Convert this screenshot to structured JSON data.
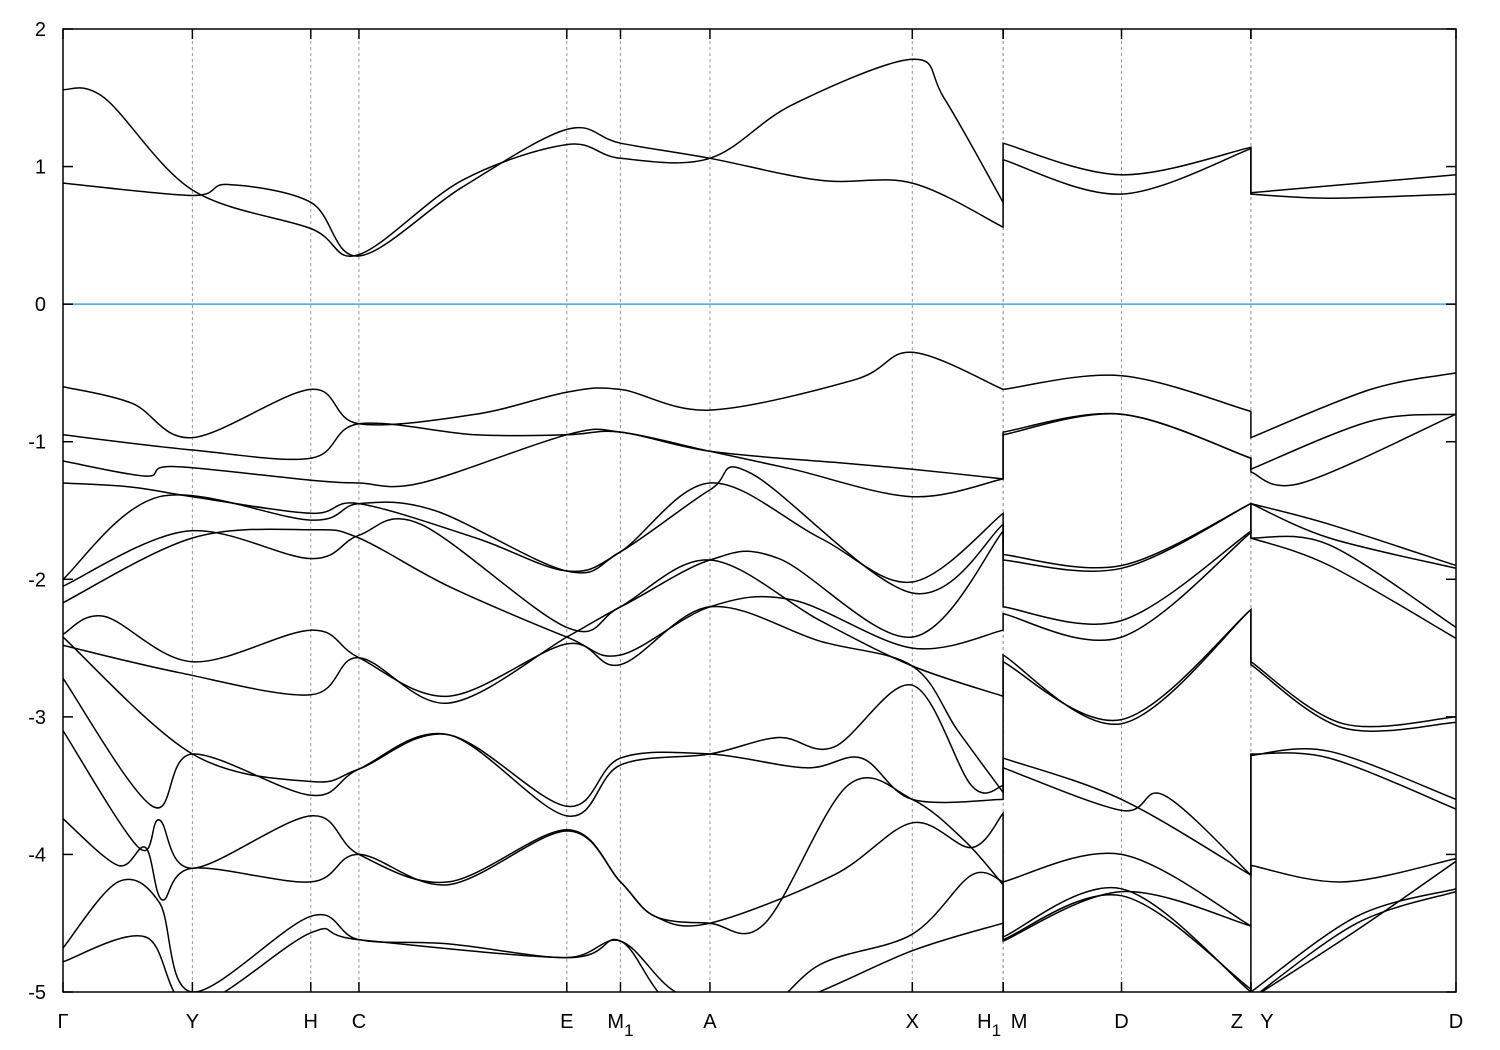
{
  "chart_data": {
    "type": "line",
    "title": "",
    "xlabel": "",
    "ylabel": "",
    "ylim": [
      -5,
      2
    ],
    "xlim": [
      0,
      10.12
    ],
    "yticks": [
      -5,
      -4,
      -3,
      -2,
      -1,
      0,
      1,
      2
    ],
    "grid": "vertical dashed lines at high-symmetry points",
    "fermi_level": {
      "value": 0,
      "color": "#3ea6da"
    },
    "band_color": "#000000",
    "kpoints": [
      {
        "label": "Γ",
        "sub": "",
        "k": 0
      },
      {
        "label": "Y",
        "sub": "",
        "k": 0.94
      },
      {
        "label": "H",
        "sub": "",
        "k": 1.8
      },
      {
        "label": "C",
        "sub": "",
        "k": 2.15
      },
      {
        "label": "E",
        "sub": "",
        "k": 3.66
      },
      {
        "label": "M",
        "sub": "1",
        "k": 4.05
      },
      {
        "label": "A",
        "sub": "",
        "k": 4.7
      },
      {
        "label": "X",
        "sub": "",
        "k": 6.17
      },
      {
        "label": "H",
        "sub": "1",
        "k": 6.83,
        "dx": -14
      },
      {
        "label": "M",
        "sub": "",
        "k": 6.83,
        "dx": 16
      },
      {
        "label": "D",
        "sub": "",
        "k": 7.69
      },
      {
        "label": "Z",
        "sub": "",
        "k": 8.63,
        "dx": -14
      },
      {
        "label": "Y",
        "sub": "",
        "k": 8.63,
        "dx": 16
      },
      {
        "label": "D",
        "sub": "",
        "k": 10.12
      }
    ],
    "bands": [
      [
        [
          0,
          1.56
        ],
        [
          0.3,
          1.5
        ],
        [
          0.94,
          0.83
        ],
        [
          1.8,
          0.55
        ],
        [
          2.15,
          0.36
        ],
        [
          2.9,
          0.9
        ],
        [
          3.66,
          1.16
        ],
        [
          4.05,
          1.06
        ],
        [
          4.7,
          1.06
        ],
        [
          5.3,
          1.45
        ],
        [
          6.17,
          1.78
        ],
        [
          6.4,
          1.5
        ],
        [
          6.83,
          0.74
        ],
        [
          6.83,
          1.17
        ],
        [
          7.69,
          0.94
        ],
        [
          8.63,
          1.14
        ],
        [
          8.63,
          0.81
        ],
        [
          10.12,
          0.94
        ]
      ],
      [
        [
          0,
          0.88
        ],
        [
          0.94,
          0.79
        ],
        [
          1.2,
          0.87
        ],
        [
          1.8,
          0.74
        ],
        [
          2.15,
          0.35
        ],
        [
          2.9,
          0.85
        ],
        [
          3.66,
          1.27
        ],
        [
          4.05,
          1.17
        ],
        [
          4.7,
          1.06
        ],
        [
          5.5,
          0.9
        ],
        [
          6.17,
          0.88
        ],
        [
          6.83,
          0.56
        ],
        [
          6.83,
          1.05
        ],
        [
          7.69,
          0.8
        ],
        [
          8.63,
          1.13
        ],
        [
          8.63,
          0.8
        ],
        [
          9.2,
          0.77
        ],
        [
          10.12,
          0.8
        ]
      ],
      [
        [
          0,
          -0.6
        ],
        [
          0.5,
          -0.72
        ],
        [
          0.94,
          -0.97
        ],
        [
          1.8,
          -0.62
        ],
        [
          2.15,
          -0.87
        ],
        [
          3.0,
          -0.8
        ],
        [
          3.66,
          -0.64
        ],
        [
          4.05,
          -0.62
        ],
        [
          4.7,
          -0.77
        ],
        [
          5.75,
          -0.55
        ],
        [
          6.17,
          -0.35
        ],
        [
          6.83,
          -0.62
        ],
        [
          6.83,
          -0.62
        ],
        [
          7.69,
          -0.52
        ],
        [
          8.63,
          -0.78
        ],
        [
          8.63,
          -0.97
        ],
        [
          9.5,
          -0.62
        ],
        [
          10.12,
          -0.5
        ]
      ],
      [
        [
          0,
          -0.95
        ],
        [
          0.94,
          -1.06
        ],
        [
          1.8,
          -1.12
        ],
        [
          2.15,
          -0.87
        ],
        [
          3.0,
          -0.95
        ],
        [
          3.66,
          -0.95
        ],
        [
          4.05,
          -0.93
        ],
        [
          4.7,
          -1.07
        ],
        [
          5.6,
          -1.15
        ],
        [
          6.17,
          -1.2
        ],
        [
          6.83,
          -1.27
        ],
        [
          6.83,
          -0.93
        ],
        [
          7.69,
          -0.8
        ],
        [
          8.63,
          -1.12
        ],
        [
          8.63,
          -1.2
        ],
        [
          9.5,
          -0.85
        ],
        [
          10.12,
          -0.8
        ]
      ],
      [
        [
          0,
          -1.14
        ],
        [
          0.6,
          -1.25
        ],
        [
          0.8,
          -1.18
        ],
        [
          1.8,
          -1.28
        ],
        [
          2.15,
          -1.3
        ],
        [
          2.6,
          -1.3
        ],
        [
          3.66,
          -0.95
        ],
        [
          4.05,
          -0.93
        ],
        [
          4.7,
          -1.07
        ],
        [
          5.3,
          -1.2
        ],
        [
          6.17,
          -1.4
        ],
        [
          6.83,
          -1.27
        ],
        [
          6.83,
          -0.95
        ],
        [
          7.69,
          -0.8
        ],
        [
          8.63,
          -1.12
        ],
        [
          8.63,
          -1.22
        ],
        [
          9.0,
          -1.3
        ],
        [
          10.12,
          -0.8
        ]
      ],
      [
        [
          0,
          -1.3
        ],
        [
          0.5,
          -1.33
        ],
        [
          0.94,
          -1.4
        ],
        [
          1.8,
          -1.52
        ],
        [
          2.15,
          -1.45
        ],
        [
          3.0,
          -1.7
        ],
        [
          3.66,
          -1.94
        ],
        [
          4.05,
          -1.8
        ],
        [
          4.7,
          -1.3
        ],
        [
          5.5,
          -1.7
        ],
        [
          6.17,
          -2.02
        ],
        [
          6.83,
          -1.52
        ],
        [
          6.83,
          -1.82
        ],
        [
          7.69,
          -1.9
        ],
        [
          8.63,
          -1.45
        ],
        [
          8.63,
          -1.45
        ],
        [
          9.2,
          -1.6
        ],
        [
          10.12,
          -1.9
        ]
      ],
      [
        [
          0,
          -2.0
        ],
        [
          0.7,
          -1.4
        ],
        [
          1.8,
          -1.57
        ],
        [
          2.15,
          -1.45
        ],
        [
          2.7,
          -1.5
        ],
        [
          3.66,
          -1.94
        ],
        [
          4.05,
          -1.8
        ],
        [
          4.7,
          -1.35
        ],
        [
          5.0,
          -1.23
        ],
        [
          6.17,
          -2.1
        ],
        [
          6.83,
          -1.6
        ],
        [
          6.83,
          -1.86
        ],
        [
          7.69,
          -1.92
        ],
        [
          8.63,
          -1.45
        ],
        [
          8.63,
          -1.7
        ],
        [
          9.2,
          -1.75
        ],
        [
          10.12,
          -2.35
        ]
      ],
      [
        [
          0,
          -2.05
        ],
        [
          0.9,
          -1.65
        ],
        [
          1.8,
          -1.85
        ],
        [
          2.15,
          -1.68
        ],
        [
          2.6,
          -1.6
        ],
        [
          3.66,
          -2.35
        ],
        [
          4.05,
          -2.2
        ],
        [
          4.7,
          -1.86
        ],
        [
          5.2,
          -1.85
        ],
        [
          6.17,
          -2.42
        ],
        [
          6.83,
          -1.65
        ],
        [
          6.83,
          -2.2
        ],
        [
          7.69,
          -2.3
        ],
        [
          8.63,
          -1.65
        ],
        [
          8.63,
          -1.7
        ],
        [
          9.2,
          -1.9
        ],
        [
          10.12,
          -2.43
        ]
      ],
      [
        [
          0,
          -2.17
        ],
        [
          0.94,
          -1.7
        ],
        [
          1.8,
          -1.64
        ],
        [
          2.15,
          -1.7
        ],
        [
          2.8,
          -2.05
        ],
        [
          3.66,
          -2.42
        ],
        [
          4.05,
          -2.55
        ],
        [
          4.7,
          -2.2
        ],
        [
          5.3,
          -2.15
        ],
        [
          6.17,
          -2.5
        ],
        [
          6.83,
          -2.37
        ],
        [
          6.83,
          -2.25
        ],
        [
          7.69,
          -2.42
        ],
        [
          8.63,
          -1.66
        ],
        [
          8.63,
          -1.45
        ],
        [
          9.2,
          -1.7
        ],
        [
          10.12,
          -1.92
        ]
      ],
      [
        [
          0,
          -2.4
        ],
        [
          0.3,
          -2.27
        ],
        [
          0.94,
          -2.6
        ],
        [
          1.8,
          -2.37
        ],
        [
          2.15,
          -2.57
        ],
        [
          2.8,
          -2.85
        ],
        [
          3.66,
          -2.47
        ],
        [
          4.05,
          -2.62
        ],
        [
          4.7,
          -2.2
        ],
        [
          5.5,
          -2.45
        ],
        [
          6.17,
          -2.63
        ],
        [
          6.5,
          -3.1
        ],
        [
          6.83,
          -3.55
        ],
        [
          6.83,
          -2.6
        ],
        [
          7.69,
          -3.02
        ],
        [
          8.63,
          -2.22
        ],
        [
          8.63,
          -2.6
        ],
        [
          9.3,
          -3.05
        ],
        [
          10.12,
          -3.0
        ]
      ],
      [
        [
          0,
          -2.48
        ],
        [
          0.85,
          -2.68
        ],
        [
          1.8,
          -2.84
        ],
        [
          2.15,
          -2.57
        ],
        [
          2.8,
          -2.9
        ],
        [
          3.66,
          -2.42
        ],
        [
          4.05,
          -2.2
        ],
        [
          4.7,
          -1.86
        ],
        [
          5.5,
          -2.3
        ],
        [
          6.17,
          -2.63
        ],
        [
          6.83,
          -2.85
        ],
        [
          6.83,
          -2.55
        ],
        [
          7.69,
          -3.05
        ],
        [
          8.63,
          -2.22
        ],
        [
          8.63,
          -2.62
        ],
        [
          9.3,
          -3.08
        ],
        [
          10.12,
          -3.04
        ]
      ],
      [
        [
          0,
          -2.42
        ],
        [
          0.94,
          -3.27
        ],
        [
          1.8,
          -3.47
        ],
        [
          2.15,
          -3.38
        ],
        [
          2.8,
          -3.13
        ],
        [
          3.66,
          -3.65
        ],
        [
          4.05,
          -3.3
        ],
        [
          4.7,
          -3.27
        ],
        [
          5.4,
          -3.37
        ],
        [
          5.8,
          -3.3
        ],
        [
          6.17,
          -3.6
        ],
        [
          6.83,
          -3.6
        ],
        [
          6.83,
          -3.3
        ],
        [
          7.69,
          -3.6
        ],
        [
          8.63,
          -4.15
        ],
        [
          8.63,
          -3.28
        ],
        [
          9.2,
          -3.25
        ],
        [
          10.12,
          -3.6
        ]
      ],
      [
        [
          0,
          -2.72
        ],
        [
          0.65,
          -3.65
        ],
        [
          0.94,
          -3.27
        ],
        [
          1.8,
          -3.57
        ],
        [
          2.15,
          -3.38
        ],
        [
          2.8,
          -3.13
        ],
        [
          3.66,
          -3.72
        ],
        [
          4.05,
          -3.35
        ],
        [
          4.7,
          -3.27
        ],
        [
          5.2,
          -3.15
        ],
        [
          5.6,
          -3.22
        ],
        [
          6.17,
          -2.77
        ],
        [
          6.6,
          -3.5
        ],
        [
          6.83,
          -3.5
        ],
        [
          6.83,
          -3.37
        ],
        [
          7.69,
          -3.68
        ],
        [
          8.0,
          -3.57
        ],
        [
          8.63,
          -4.15
        ],
        [
          8.63,
          -3.27
        ],
        [
          9.2,
          -3.3
        ],
        [
          10.12,
          -3.67
        ]
      ],
      [
        [
          0,
          -3.1
        ],
        [
          0.55,
          -3.95
        ],
        [
          0.7,
          -3.75
        ],
        [
          0.94,
          -4.1
        ],
        [
          1.8,
          -3.72
        ],
        [
          2.15,
          -4.0
        ],
        [
          2.8,
          -4.2
        ],
        [
          3.66,
          -3.82
        ],
        [
          4.05,
          -4.2
        ],
        [
          4.3,
          -4.45
        ],
        [
          4.7,
          -4.5
        ],
        [
          5.6,
          -4.15
        ],
        [
          6.17,
          -3.77
        ],
        [
          6.6,
          -3.95
        ],
        [
          6.83,
          -3.7
        ],
        [
          6.83,
          -4.2
        ],
        [
          7.69,
          -4.0
        ],
        [
          8.63,
          -4.52
        ],
        [
          8.63,
          -4.08
        ],
        [
          9.3,
          -4.2
        ],
        [
          10.12,
          -4.03
        ]
      ],
      [
        [
          0,
          -3.74
        ],
        [
          0.4,
          -4.08
        ],
        [
          0.6,
          -3.95
        ],
        [
          0.72,
          -4.33
        ],
        [
          0.94,
          -4.1
        ],
        [
          1.8,
          -4.2
        ],
        [
          2.15,
          -4.0
        ],
        [
          2.8,
          -4.22
        ],
        [
          3.66,
          -3.83
        ],
        [
          4.05,
          -4.2
        ],
        [
          4.3,
          -4.45
        ],
        [
          4.7,
          -4.5
        ],
        [
          5.1,
          -4.5
        ],
        [
          5.7,
          -3.5
        ],
        [
          6.17,
          -3.6
        ],
        [
          6.55,
          -3.9
        ],
        [
          6.83,
          -4.22
        ],
        [
          6.83,
          -4.63
        ],
        [
          7.69,
          -4.27
        ],
        [
          8.63,
          -4.52
        ],
        [
          8.63,
          -5.0
        ],
        [
          9.4,
          -4.45
        ],
        [
          10.12,
          -4.25
        ]
      ],
      [
        [
          0,
          -4.68
        ],
        [
          0.4,
          -4.2
        ],
        [
          0.7,
          -4.35
        ],
        [
          0.94,
          -5.0
        ],
        [
          1.8,
          -4.45
        ],
        [
          2.15,
          -4.62
        ],
        [
          2.8,
          -4.65
        ],
        [
          3.66,
          -4.75
        ],
        [
          4.05,
          -4.63
        ],
        [
          4.45,
          -5.0
        ],
        [
          5.0,
          -5.2
        ],
        [
          5.5,
          -4.8
        ],
        [
          6.17,
          -4.58
        ],
        [
          6.6,
          -4.15
        ],
        [
          6.83,
          -4.2
        ],
        [
          6.83,
          -4.6
        ],
        [
          7.69,
          -4.25
        ],
        [
          8.63,
          -5.0
        ],
        [
          8.63,
          -5.05
        ],
        [
          9.4,
          -4.5
        ],
        [
          10.12,
          -4.27
        ]
      ],
      [
        [
          0,
          -4.78
        ],
        [
          0.6,
          -4.6
        ],
        [
          0.94,
          -5.1
        ],
        [
          1.8,
          -4.57
        ],
        [
          2.15,
          -4.62
        ],
        [
          3.66,
          -4.75
        ],
        [
          4.05,
          -4.63
        ],
        [
          4.45,
          -5.1
        ],
        [
          5.2,
          -5.1
        ],
        [
          6.17,
          -4.7
        ],
        [
          6.83,
          -4.5
        ],
        [
          6.83,
          -4.62
        ],
        [
          7.69,
          -4.3
        ],
        [
          8.63,
          -4.98
        ],
        [
          8.63,
          -5.05
        ],
        [
          9.4,
          -4.55
        ],
        [
          10.12,
          -4.05
        ]
      ]
    ]
  }
}
